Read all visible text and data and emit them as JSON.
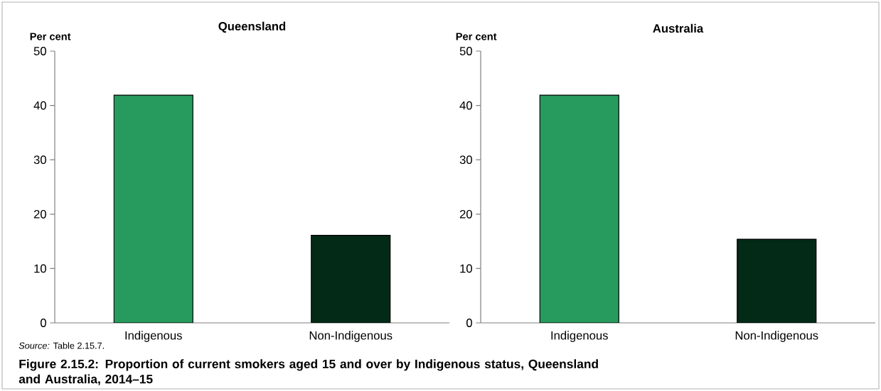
{
  "chart_data": [
    {
      "type": "bar",
      "title": "Queensland",
      "ylabel": "Per cent",
      "categories": [
        "Indigenous",
        "Non-Indigenous"
      ],
      "values": [
        41.9,
        16.1
      ],
      "colors": [
        "#279b5e",
        "#032a17"
      ],
      "ylim": [
        0,
        50
      ],
      "yticks": [
        0,
        10,
        20,
        30,
        40,
        50
      ],
      "grid": false,
      "annotations": [
        "*Source:* Table 2.15.7.",
        "**Figure 2.15.2: Proportion of current smokers aged 15 and over by Indigenous status, Queensland and Australia, 2014–15**"
      ]
    },
    {
      "type": "bar",
      "title": "Australia",
      "ylabel": "Per cent",
      "categories": [
        "Indigenous",
        "Non-Indigenous"
      ],
      "values": [
        41.9,
        15.4
      ],
      "colors": [
        "#279b5e",
        "#032a17"
      ],
      "ylim": [
        0,
        50
      ],
      "yticks": [
        0,
        10,
        20,
        30,
        40,
        50
      ],
      "grid": false
    }
  ]
}
